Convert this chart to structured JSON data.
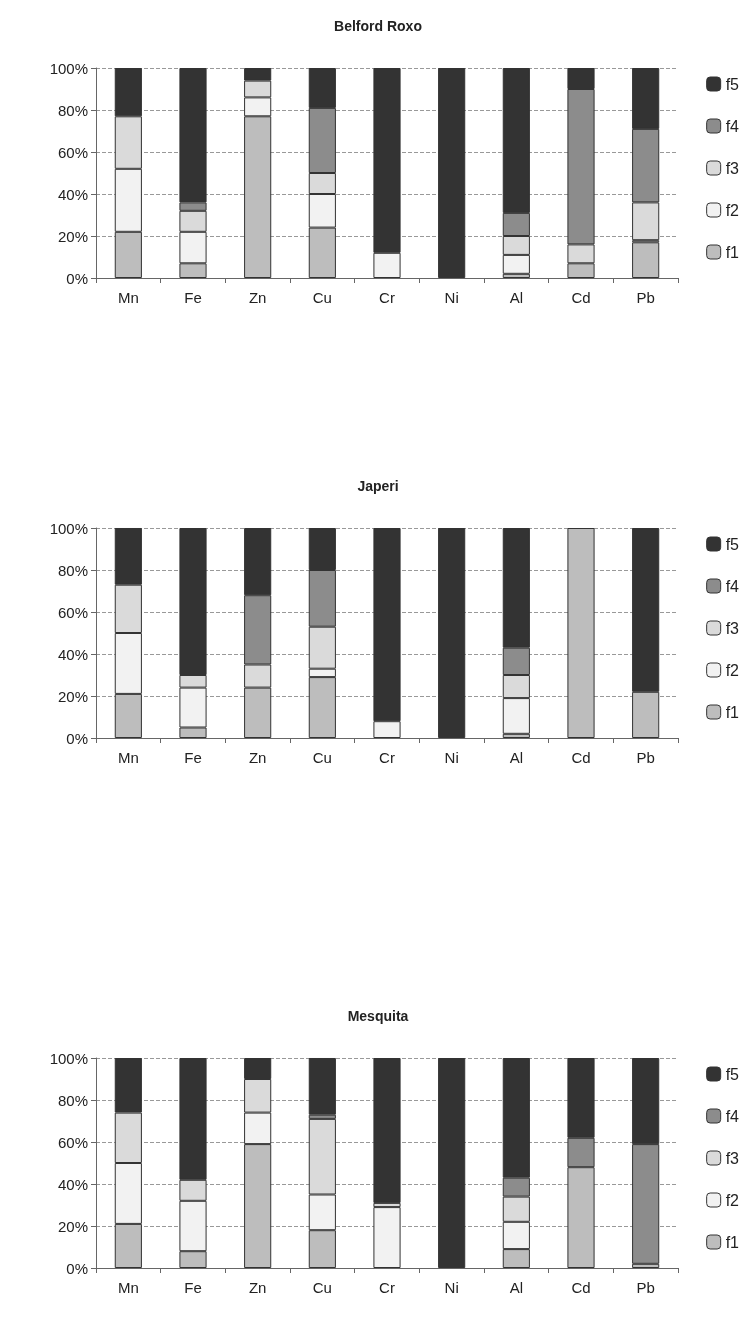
{
  "chart_data": [
    {
      "type": "bar",
      "title": "Belford Roxo",
      "stacked": true,
      "categories": [
        "Mn",
        "Fe",
        "Zn",
        "Cu",
        "Cr",
        "Ni",
        "Al",
        "Cd",
        "Pb"
      ],
      "series": [
        {
          "name": "f1",
          "color": "#bdbdbd",
          "values": [
            22,
            7,
            77,
            24,
            0,
            0,
            2,
            7,
            17
          ]
        },
        {
          "name": "f2",
          "color": "#f2f2f2",
          "values": [
            30,
            15,
            9,
            16,
            12,
            0,
            9,
            0,
            1
          ]
        },
        {
          "name": "f3",
          "color": "#dadada",
          "values": [
            25,
            10,
            8,
            10,
            0,
            0,
            9,
            9,
            18
          ]
        },
        {
          "name": "f4",
          "color": "#8c8c8c",
          "values": [
            0,
            4,
            0,
            31,
            0,
            0,
            11,
            74,
            35
          ]
        },
        {
          "name": "f5",
          "color": "#333333",
          "values": [
            23,
            64,
            6,
            19,
            88,
            100,
            69,
            10,
            29
          ]
        }
      ],
      "ylim": [
        0,
        100
      ],
      "yticks": [
        {
          "value": 0,
          "label": "0%"
        },
        {
          "value": 20,
          "label": "20%"
        },
        {
          "value": 40,
          "label": "40%"
        },
        {
          "value": 60,
          "label": "60%"
        },
        {
          "value": 80,
          "label": "80%"
        },
        {
          "value": 100,
          "label": "100%"
        }
      ],
      "grid": "y",
      "legend": "right"
    },
    {
      "type": "bar",
      "title": "Japeri",
      "stacked": true,
      "categories": [
        "Mn",
        "Fe",
        "Zn",
        "Cu",
        "Cr",
        "Ni",
        "Al",
        "Cd",
        "Pb"
      ],
      "series": [
        {
          "name": "f1",
          "color": "#bdbdbd",
          "values": [
            21,
            5,
            24,
            29,
            0,
            0,
            2,
            100,
            22
          ]
        },
        {
          "name": "f2",
          "color": "#f2f2f2",
          "values": [
            29,
            19,
            0,
            4,
            8,
            0,
            17,
            0,
            0
          ]
        },
        {
          "name": "f3",
          "color": "#dadada",
          "values": [
            23,
            6,
            11,
            20,
            0,
            0,
            11,
            0,
            0
          ]
        },
        {
          "name": "f4",
          "color": "#8c8c8c",
          "values": [
            0,
            0,
            33,
            27,
            0,
            0,
            13,
            0,
            0
          ]
        },
        {
          "name": "f5",
          "color": "#333333",
          "values": [
            27,
            70,
            32,
            20,
            92,
            100,
            57,
            0,
            78
          ]
        }
      ],
      "ylim": [
        0,
        100
      ],
      "yticks": [
        {
          "value": 0,
          "label": "0%"
        },
        {
          "value": 20,
          "label": "20%"
        },
        {
          "value": 40,
          "label": "40%"
        },
        {
          "value": 60,
          "label": "60%"
        },
        {
          "value": 80,
          "label": "80%"
        },
        {
          "value": 100,
          "label": "100%"
        }
      ],
      "grid": "y",
      "legend": "right"
    },
    {
      "type": "bar",
      "title": "Mesquita",
      "stacked": true,
      "categories": [
        "Mn",
        "Fe",
        "Zn",
        "Cu",
        "Cr",
        "Ni",
        "Al",
        "Cd",
        "Pb"
      ],
      "series": [
        {
          "name": "f1",
          "color": "#bdbdbd",
          "values": [
            21,
            8,
            59,
            18,
            0,
            0,
            9,
            48,
            2
          ]
        },
        {
          "name": "f2",
          "color": "#f2f2f2",
          "values": [
            29,
            24,
            15,
            17,
            29,
            0,
            13,
            0,
            0
          ]
        },
        {
          "name": "f3",
          "color": "#dadada",
          "values": [
            24,
            10,
            16,
            36,
            2,
            0,
            12,
            0,
            0
          ]
        },
        {
          "name": "f4",
          "color": "#8c8c8c",
          "values": [
            0,
            0,
            0,
            2,
            0,
            0,
            9,
            14,
            57
          ]
        },
        {
          "name": "f5",
          "color": "#333333",
          "values": [
            26,
            58,
            10,
            27,
            69,
            100,
            57,
            38,
            41
          ]
        }
      ],
      "ylim": [
        0,
        100
      ],
      "yticks": [
        {
          "value": 0,
          "label": "0%"
        },
        {
          "value": 20,
          "label": "20%"
        },
        {
          "value": 40,
          "label": "40%"
        },
        {
          "value": 60,
          "label": "60%"
        },
        {
          "value": 80,
          "label": "80%"
        },
        {
          "value": 100,
          "label": "100%"
        }
      ],
      "grid": "y",
      "legend": "right"
    }
  ]
}
